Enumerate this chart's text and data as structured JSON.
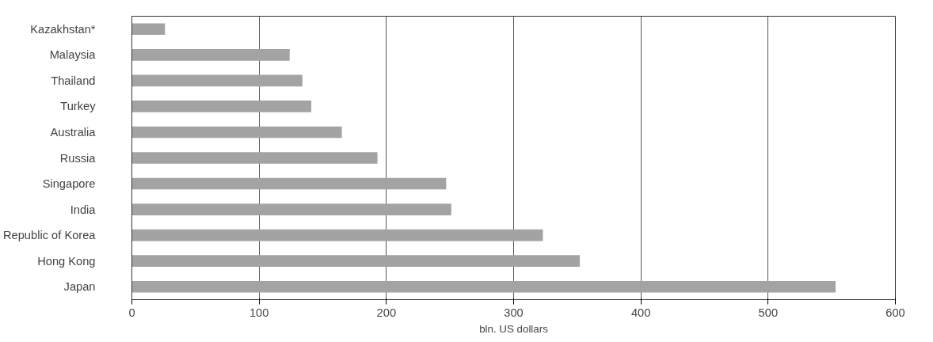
{
  "chart_data": {
    "type": "bar",
    "orientation": "horizontal",
    "xlabel": "bln. US dollars",
    "categories": [
      "Kazakhstan*",
      "Malaysia",
      "Thailand",
      "Turkey",
      "Australia",
      "Russia",
      "Singapore",
      "India",
      "Republic of Korea",
      "Hong Kong",
      "Japan"
    ],
    "values": [
      26,
      124,
      134,
      141,
      165,
      193,
      247,
      251,
      323,
      352,
      553
    ],
    "color": "#a3a3a3",
    "xlim": [
      0,
      600
    ],
    "xticks": [
      0,
      100,
      200,
      300,
      400,
      500,
      600
    ],
    "grid": "x"
  }
}
